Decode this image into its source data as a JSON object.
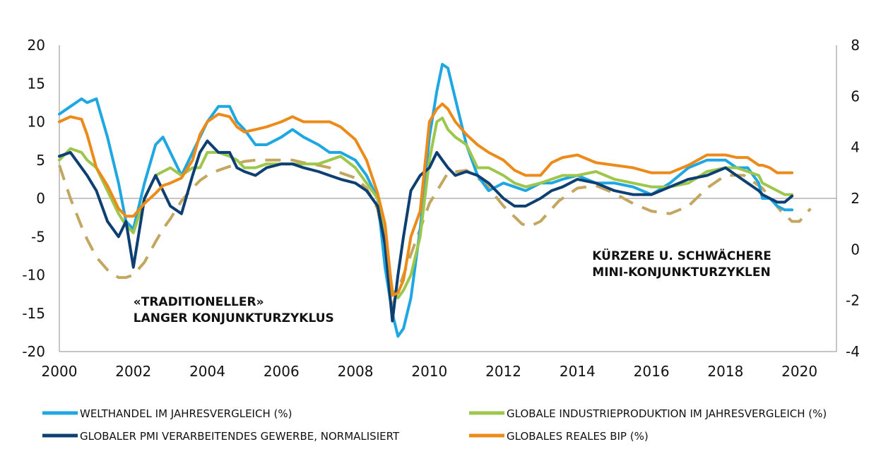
{
  "chart_data": {
    "type": "line",
    "title": "",
    "xlabel": "",
    "ylabel": "",
    "xlim": [
      2000,
      2021
    ],
    "ylim_left": [
      -20,
      20
    ],
    "ylim_right": [
      -4,
      8
    ],
    "x_ticks": [
      "2000",
      "2002",
      "2004",
      "2006",
      "2008",
      "2010",
      "2012",
      "2014",
      "2016",
      "2018",
      "2020"
    ],
    "y_ticks_left": [
      "20",
      "15",
      "10",
      "5",
      "0",
      "-5",
      "-10",
      "-15",
      "-20"
    ],
    "y_ticks_right": [
      "8",
      "6",
      "4",
      "2",
      "0",
      "-2",
      "-4"
    ],
    "legend_position": "bottom",
    "annotations": [
      {
        "lines": [
          "«TRADITIONELLER»",
          "LANGER KONJUNKTURZYKLUS"
        ],
        "x": 2002.0,
        "y": -14.0
      },
      {
        "lines": [
          "KÜRZERE U. SCHWÄCHERE",
          "MINI-KONJUNKTURZYKLEN"
        ],
        "x": 2014.4,
        "y": -8.0
      }
    ],
    "series": [
      {
        "name": "WELTHANDEL IM JAHRESVERGLEICH (%)",
        "axis": "left",
        "color": "#1ea7e1",
        "style": "solid",
        "x": [
          2000.0,
          2000.3,
          2000.6,
          2000.75,
          2001.0,
          2001.3,
          2001.6,
          2001.8,
          2002.0,
          2002.3,
          2002.6,
          2002.8,
          2003.0,
          2003.3,
          2003.6,
          2003.8,
          2004.0,
          2004.3,
          2004.6,
          2004.8,
          2005.0,
          2005.3,
          2005.6,
          2006.0,
          2006.3,
          2006.6,
          2007.0,
          2007.3,
          2007.6,
          2008.0,
          2008.3,
          2008.6,
          2008.8,
          2009.0,
          2009.15,
          2009.3,
          2009.5,
          2009.75,
          2010.0,
          2010.2,
          2010.35,
          2010.5,
          2010.7,
          2011.0,
          2011.3,
          2011.6,
          2012.0,
          2012.3,
          2012.6,
          2013.0,
          2013.3,
          2013.6,
          2014.0,
          2014.5,
          2015.0,
          2015.5,
          2016.0,
          2016.5,
          2017.0,
          2017.5,
          2018.0,
          2018.3,
          2018.6,
          2018.9,
          2019.0,
          2019.2,
          2019.4,
          2019.6,
          2019.8
        ],
        "values": [
          11,
          12,
          13,
          12.5,
          13,
          8,
          2,
          -3,
          -4,
          2,
          7,
          8,
          6,
          3,
          6,
          8,
          10,
          12,
          12,
          10,
          9,
          7,
          7,
          8,
          9,
          8,
          7,
          6,
          6,
          5,
          3,
          0,
          -9,
          -15,
          -18,
          -17,
          -13,
          -4,
          8,
          14,
          17.5,
          17,
          13,
          7,
          3,
          1,
          2,
          1.5,
          1,
          2,
          2,
          2.5,
          3,
          2,
          2,
          1.5,
          0.5,
          2,
          4,
          5,
          5,
          4,
          4,
          2,
          0,
          0,
          -1,
          -1.5,
          -1.5
        ]
      },
      {
        "name": "GLOBALE INDUSTRIEPRODUKTION IM JAHRESVERGLEICH (%)",
        "axis": "left",
        "color": "#9dc64d",
        "style": "solid",
        "x": [
          2000.0,
          2000.3,
          2000.6,
          2000.75,
          2001.0,
          2001.3,
          2001.6,
          2001.8,
          2002.0,
          2002.3,
          2002.6,
          2002.8,
          2003.0,
          2003.3,
          2003.6,
          2003.8,
          2004.0,
          2004.3,
          2004.6,
          2004.8,
          2005.0,
          2005.3,
          2005.6,
          2006.0,
          2006.3,
          2006.6,
          2007.0,
          2007.3,
          2007.6,
          2008.0,
          2008.3,
          2008.6,
          2008.8,
          2009.0,
          2009.15,
          2009.3,
          2009.5,
          2009.75,
          2010.0,
          2010.2,
          2010.35,
          2010.5,
          2010.7,
          2011.0,
          2011.3,
          2011.6,
          2012.0,
          2012.3,
          2012.6,
          2013.0,
          2013.3,
          2013.6,
          2014.0,
          2014.5,
          2015.0,
          2015.5,
          2016.0,
          2016.5,
          2017.0,
          2017.5,
          2018.0,
          2018.3,
          2018.6,
          2018.9,
          2019.0,
          2019.2,
          2019.4,
          2019.6,
          2019.8
        ],
        "values": [
          5,
          6.5,
          6,
          5,
          4,
          1,
          -2,
          -3.5,
          -4.5,
          0,
          3,
          3.5,
          4,
          3,
          4,
          4,
          6,
          6,
          5.5,
          5,
          4,
          4,
          4.5,
          4.5,
          4.5,
          4.5,
          4.5,
          5,
          5.5,
          4,
          2,
          0,
          -5,
          -12,
          -13,
          -12,
          -10,
          -5,
          5,
          10,
          10.5,
          9,
          8,
          7,
          4,
          4,
          3,
          2,
          1.5,
          2,
          2.5,
          3,
          3,
          3.5,
          2.5,
          2,
          1.5,
          1.5,
          2,
          3.5,
          4,
          4,
          3.5,
          3,
          2,
          1.5,
          1,
          0.5,
          0.5
        ]
      },
      {
        "name": "GLOBALER PMI VERARBEITENDES GEWERBE, NORMALISIERT",
        "axis": "left",
        "color": "#0d3f73",
        "style": "solid",
        "x": [
          2000.0,
          2000.3,
          2000.6,
          2000.75,
          2001.0,
          2001.3,
          2001.6,
          2001.8,
          2002.0,
          2002.3,
          2002.6,
          2002.8,
          2003.0,
          2003.3,
          2003.6,
          2003.8,
          2004.0,
          2004.3,
          2004.6,
          2004.8,
          2005.0,
          2005.3,
          2005.6,
          2006.0,
          2006.3,
          2006.6,
          2007.0,
          2007.3,
          2007.6,
          2008.0,
          2008.3,
          2008.6,
          2008.8,
          2009.0,
          2009.15,
          2009.3,
          2009.5,
          2009.75,
          2010.0,
          2010.2,
          2010.35,
          2010.5,
          2010.7,
          2011.0,
          2011.3,
          2011.6,
          2012.0,
          2012.3,
          2012.6,
          2013.0,
          2013.3,
          2013.6,
          2014.0,
          2014.5,
          2015.0,
          2015.5,
          2016.0,
          2016.5,
          2017.0,
          2017.5,
          2018.0,
          2018.3,
          2018.6,
          2018.9,
          2019.0,
          2019.2,
          2019.4,
          2019.6,
          2019.8
        ],
        "values": [
          5.5,
          6,
          4,
          3,
          1,
          -3,
          -5,
          -3,
          -9,
          0,
          3,
          1,
          -1,
          -2,
          3,
          6,
          7.5,
          6,
          6,
          4,
          3.5,
          3,
          4,
          4.5,
          4.5,
          4,
          3.5,
          3,
          2.5,
          2,
          1,
          -1,
          -6,
          -16,
          -10,
          -5,
          1,
          3,
          4,
          6,
          5,
          4,
          3,
          3.5,
          3,
          2,
          0,
          -1,
          -1,
          0,
          1,
          1.5,
          2.5,
          2,
          1,
          0.5,
          0.5,
          1.5,
          2.5,
          3,
          4,
          3,
          2,
          1,
          0.5,
          0,
          -0.5,
          -0.5,
          0.3
        ]
      },
      {
        "name": "GLOBALES REALES BIP (%)",
        "axis": "right",
        "color": "#ec8a1a",
        "style": "solid",
        "x": [
          2000.0,
          2000.3,
          2000.6,
          2000.75,
          2001.0,
          2001.3,
          2001.6,
          2001.8,
          2002.0,
          2002.3,
          2002.6,
          2002.8,
          2003.0,
          2003.3,
          2003.6,
          2003.8,
          2004.0,
          2004.3,
          2004.6,
          2004.8,
          2005.0,
          2005.3,
          2005.6,
          2006.0,
          2006.3,
          2006.6,
          2007.0,
          2007.3,
          2007.6,
          2008.0,
          2008.3,
          2008.6,
          2008.8,
          2009.0,
          2009.15,
          2009.3,
          2009.5,
          2009.75,
          2010.0,
          2010.2,
          2010.35,
          2010.5,
          2010.7,
          2011.0,
          2011.3,
          2011.6,
          2012.0,
          2012.3,
          2012.6,
          2013.0,
          2013.3,
          2013.6,
          2014.0,
          2014.5,
          2015.0,
          2015.5,
          2016.0,
          2016.5,
          2017.0,
          2017.5,
          2018.0,
          2018.3,
          2018.6,
          2018.9,
          2019.0,
          2019.2,
          2019.4,
          2019.6,
          2019.8
        ],
        "values": [
          5,
          5.2,
          5.1,
          4.5,
          3.2,
          2.5,
          1.6,
          1.3,
          1.3,
          1.8,
          2.2,
          2.5,
          2.6,
          2.8,
          3.5,
          4.5,
          5,
          5.3,
          5.2,
          4.8,
          4.6,
          4.7,
          4.8,
          5,
          5.2,
          5,
          5,
          5,
          4.8,
          4.3,
          3.5,
          2.2,
          1,
          -1.8,
          -1.7,
          -1.2,
          0.5,
          1.5,
          5,
          5.5,
          5.7,
          5.5,
          5,
          4.5,
          4.1,
          3.8,
          3.5,
          3.1,
          2.9,
          2.9,
          3.4,
          3.6,
          3.7,
          3.4,
          3.3,
          3.2,
          3,
          3,
          3.3,
          3.7,
          3.7,
          3.6,
          3.6,
          3.3,
          3.3,
          3.2,
          3.0,
          3.0,
          3.0
        ]
      },
      {
        "name": "",
        "axis": "right",
        "color": "#c3a660",
        "style": "dashed",
        "x": [
          2000.0,
          2000.3,
          2000.6,
          2000.75,
          2001.0,
          2001.3,
          2001.6,
          2001.8,
          2002.0,
          2002.3,
          2002.6,
          2002.8,
          2003.0,
          2003.3,
          2003.6,
          2003.8,
          2004.0,
          2004.3,
          2004.6,
          2004.8,
          2005.0,
          2005.3,
          2005.6,
          2006.0,
          2006.3,
          2006.6,
          2007.0,
          2007.3,
          2007.6,
          2008.0,
          2008.3,
          2008.6,
          2008.8,
          2009.0,
          2010.0,
          2010.5,
          2011.0,
          2011.5,
          2012.0,
          2012.5,
          2012.7,
          2013.0,
          2013.5,
          2014.0,
          2014.5,
          2015.0,
          2015.5,
          2016.0,
          2016.5,
          2017.0,
          2017.5,
          2018.0,
          2018.5,
          2019.0,
          2019.5,
          2019.8,
          2020.0,
          2020.3
        ],
        "values": [
          3.3,
          2,
          0.9,
          0.4,
          -0.3,
          -0.8,
          -1.1,
          -1.1,
          -1.0,
          -0.5,
          0.3,
          0.8,
          1.2,
          1.9,
          2.4,
          2.7,
          2.9,
          3.1,
          3.25,
          3.35,
          3.45,
          3.5,
          3.5,
          3.5,
          3.5,
          3.4,
          3.3,
          3.2,
          3.0,
          2.8,
          2.4,
          1.6,
          0,
          -2.2,
          1.8,
          3.0,
          3.1,
          2.6,
          1.7,
          1.0,
          0.9,
          1.1,
          1.9,
          2.4,
          2.5,
          2.2,
          1.8,
          1.5,
          1.4,
          1.7,
          2.4,
          2.9,
          2.9,
          2.4,
          1.5,
          1.1,
          1.1,
          1.6
        ]
      }
    ]
  }
}
